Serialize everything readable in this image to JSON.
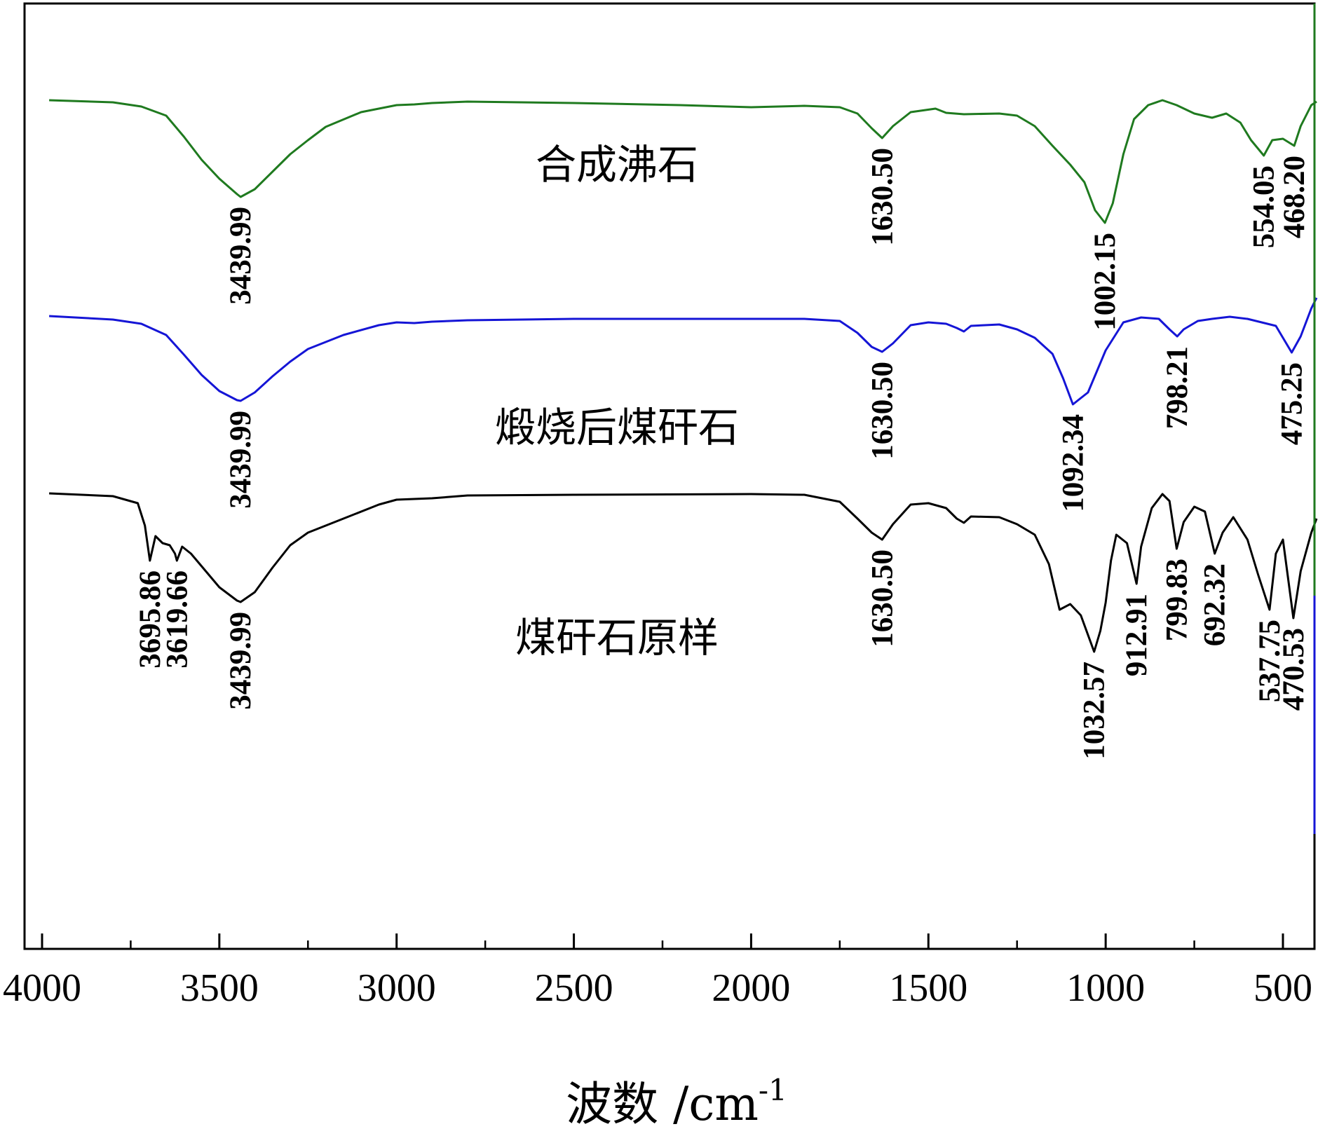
{
  "chart_data": {
    "type": "line",
    "xlabel_main": "波数",
    "xlabel_unit": " /cm",
    "xlabel_sup": "-1",
    "xlim": [
      4030,
      400
    ],
    "x_ticks": [
      4000,
      3500,
      3000,
      2500,
      2000,
      1500,
      1000,
      500
    ],
    "y_ticks_visible": false,
    "colors": {
      "green": "#1f7a1f",
      "blue": "#1515d6",
      "black": "#000000"
    },
    "series": [
      {
        "name": "合成沸石",
        "color": "#1f7a1f",
        "points": [
          [
            3980,
            143
          ],
          [
            3800,
            146
          ],
          [
            3720,
            152
          ],
          [
            3650,
            165
          ],
          [
            3600,
            195
          ],
          [
            3550,
            228
          ],
          [
            3500,
            255
          ],
          [
            3450,
            277
          ],
          [
            3439.99,
            281
          ],
          [
            3400,
            270
          ],
          [
            3350,
            245
          ],
          [
            3300,
            220
          ],
          [
            3250,
            200
          ],
          [
            3200,
            181
          ],
          [
            3100,
            160
          ],
          [
            3000,
            150
          ],
          [
            2950,
            149
          ],
          [
            2900,
            147
          ],
          [
            2800,
            145
          ],
          [
            2500,
            147
          ],
          [
            2200,
            150
          ],
          [
            2000,
            153
          ],
          [
            1850,
            151
          ],
          [
            1750,
            153
          ],
          [
            1700,
            162
          ],
          [
            1660,
            183
          ],
          [
            1630.5,
            197
          ],
          [
            1600,
            180
          ],
          [
            1550,
            160
          ],
          [
            1480,
            155
          ],
          [
            1450,
            161
          ],
          [
            1400,
            163
          ],
          [
            1300,
            162
          ],
          [
            1250,
            165
          ],
          [
            1200,
            180
          ],
          [
            1150,
            208
          ],
          [
            1100,
            235
          ],
          [
            1060,
            260
          ],
          [
            1030,
            300
          ],
          [
            1002.15,
            318
          ],
          [
            980,
            290
          ],
          [
            950,
            220
          ],
          [
            920,
            170
          ],
          [
            880,
            150
          ],
          [
            840,
            143
          ],
          [
            800,
            150
          ],
          [
            750,
            162
          ],
          [
            700,
            168
          ],
          [
            660,
            162
          ],
          [
            620,
            175
          ],
          [
            590,
            200
          ],
          [
            554.05,
            222
          ],
          [
            530,
            200
          ],
          [
            500,
            198
          ],
          [
            468.2,
            208
          ],
          [
            450,
            180
          ],
          [
            420,
            150
          ],
          [
            405,
            145
          ]
        ],
        "annotations": [
          {
            "x": 3439.99,
            "text": "3439.99"
          },
          {
            "x": 1630.5,
            "text": "1630.50"
          },
          {
            "x": 1002.15,
            "text": "1002.15"
          },
          {
            "x": 554.05,
            "text": "554.05"
          },
          {
            "x": 468.2,
            "text": "468.20"
          }
        ]
      },
      {
        "name": "煅烧后煤矸石",
        "color": "#1515d6",
        "points": [
          [
            3980,
            451
          ],
          [
            3800,
            456
          ],
          [
            3720,
            462
          ],
          [
            3650,
            478
          ],
          [
            3600,
            506
          ],
          [
            3550,
            535
          ],
          [
            3500,
            558
          ],
          [
            3450,
            571
          ],
          [
            3439.99,
            572
          ],
          [
            3400,
            560
          ],
          [
            3350,
            537
          ],
          [
            3300,
            516
          ],
          [
            3250,
            498
          ],
          [
            3150,
            478
          ],
          [
            3050,
            464
          ],
          [
            3000,
            460
          ],
          [
            2950,
            461
          ],
          [
            2900,
            459
          ],
          [
            2800,
            457
          ],
          [
            2500,
            455
          ],
          [
            2000,
            455
          ],
          [
            1850,
            455
          ],
          [
            1750,
            458
          ],
          [
            1700,
            475
          ],
          [
            1660,
            495
          ],
          [
            1630.5,
            502
          ],
          [
            1600,
            490
          ],
          [
            1550,
            464
          ],
          [
            1500,
            460
          ],
          [
            1450,
            462
          ],
          [
            1420,
            468
          ],
          [
            1400,
            473
          ],
          [
            1380,
            465
          ],
          [
            1300,
            463
          ],
          [
            1250,
            470
          ],
          [
            1200,
            482
          ],
          [
            1150,
            505
          ],
          [
            1120,
            540
          ],
          [
            1092.34,
            577
          ],
          [
            1070,
            568
          ],
          [
            1050,
            560
          ],
          [
            1000,
            500
          ],
          [
            950,
            460
          ],
          [
            900,
            453
          ],
          [
            850,
            455
          ],
          [
            820,
            470
          ],
          [
            798.21,
            480
          ],
          [
            780,
            470
          ],
          [
            740,
            458
          ],
          [
            700,
            455
          ],
          [
            650,
            452
          ],
          [
            600,
            455
          ],
          [
            560,
            460
          ],
          [
            520,
            465
          ],
          [
            475.25,
            503
          ],
          [
            450,
            480
          ],
          [
            420,
            440
          ],
          [
            405,
            425
          ]
        ],
        "annotations": [
          {
            "x": 3439.99,
            "text": "3439.99"
          },
          {
            "x": 1630.5,
            "text": "1630.50"
          },
          {
            "x": 1092.34,
            "text": "1092.34"
          },
          {
            "x": 798.21,
            "text": "798.21"
          },
          {
            "x": 475.25,
            "text": "475.25"
          }
        ]
      },
      {
        "name": "煤矸石原样",
        "color": "#000000",
        "points": [
          [
            3980,
            704
          ],
          [
            3800,
            708
          ],
          [
            3730,
            718
          ],
          [
            3710,
            750
          ],
          [
            3695.86,
            800
          ],
          [
            3680,
            765
          ],
          [
            3660,
            775
          ],
          [
            3640,
            778
          ],
          [
            3625,
            790
          ],
          [
            3619.66,
            800
          ],
          [
            3605,
            780
          ],
          [
            3580,
            790
          ],
          [
            3550,
            808
          ],
          [
            3500,
            838
          ],
          [
            3450,
            857
          ],
          [
            3439.99,
            859
          ],
          [
            3400,
            845
          ],
          [
            3350,
            810
          ],
          [
            3300,
            778
          ],
          [
            3250,
            760
          ],
          [
            3150,
            740
          ],
          [
            3050,
            720
          ],
          [
            3000,
            713
          ],
          [
            2950,
            712
          ],
          [
            2900,
            711
          ],
          [
            2800,
            707
          ],
          [
            2500,
            706
          ],
          [
            2000,
            705
          ],
          [
            1850,
            706
          ],
          [
            1750,
            716
          ],
          [
            1700,
            740
          ],
          [
            1660,
            760
          ],
          [
            1630.5,
            770
          ],
          [
            1600,
            748
          ],
          [
            1550,
            720
          ],
          [
            1500,
            718
          ],
          [
            1450,
            725
          ],
          [
            1420,
            740
          ],
          [
            1400,
            746
          ],
          [
            1380,
            737
          ],
          [
            1300,
            738
          ],
          [
            1250,
            748
          ],
          [
            1200,
            763
          ],
          [
            1160,
            805
          ],
          [
            1130,
            870
          ],
          [
            1100,
            862
          ],
          [
            1070,
            878
          ],
          [
            1032.57,
            930
          ],
          [
            1015,
            900
          ],
          [
            1000,
            860
          ],
          [
            985,
            800
          ],
          [
            970,
            763
          ],
          [
            940,
            775
          ],
          [
            912.91,
            833
          ],
          [
            900,
            780
          ],
          [
            870,
            725
          ],
          [
            840,
            705
          ],
          [
            820,
            715
          ],
          [
            799.83,
            783
          ],
          [
            780,
            745
          ],
          [
            750,
            723
          ],
          [
            720,
            730
          ],
          [
            692.32,
            790
          ],
          [
            670,
            760
          ],
          [
            640,
            738
          ],
          [
            600,
            770
          ],
          [
            570,
            820
          ],
          [
            537.75,
            870
          ],
          [
            520,
            790
          ],
          [
            500,
            770
          ],
          [
            470.53,
            882
          ],
          [
            450,
            815
          ],
          [
            420,
            760
          ],
          [
            405,
            740
          ]
        ],
        "annotations": [
          {
            "x": 3695.86,
            "text": "3695.86"
          },
          {
            "x": 3619.66,
            "text": "3619.66"
          },
          {
            "x": 3439.99,
            "text": "3439.99"
          },
          {
            "x": 1630.5,
            "text": "1630.50"
          },
          {
            "x": 1032.57,
            "text": "1032.57"
          },
          {
            "x": 912.91,
            "text": "912.91"
          },
          {
            "x": 799.83,
            "text": "799.83"
          },
          {
            "x": 692.32,
            "text": "692.32"
          },
          {
            "x": 537.75,
            "text": "537.75"
          },
          {
            "x": 470.53,
            "text": "470.53"
          }
        ]
      }
    ]
  }
}
